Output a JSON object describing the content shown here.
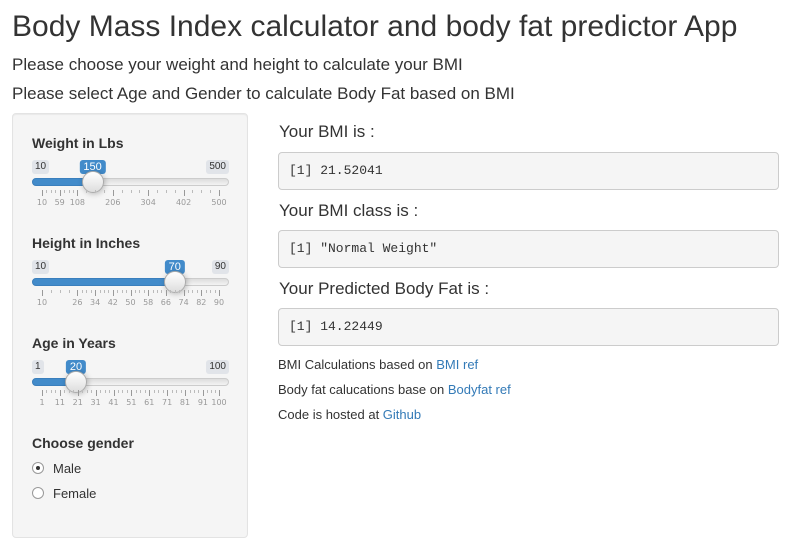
{
  "header": {
    "title": "Body Mass Index calculator and body fat predictor App",
    "subtitle1": "Please choose your weight and height to calculate your BMI",
    "subtitle2": "Please select Age and Gender to calculate Body Fat based on BMI"
  },
  "sidebar": {
    "weight": {
      "label": "Weight in Lbs",
      "min": "10",
      "max": "500",
      "value": "150",
      "fraction": 0.2857,
      "ticks": [
        "10",
        "59",
        "108",
        "206",
        "304",
        "402",
        "500"
      ],
      "tick_values": [
        10,
        59,
        108,
        206,
        304,
        402,
        500
      ],
      "range": [
        10,
        500
      ]
    },
    "height": {
      "label": "Height in Inches",
      "min": "10",
      "max": "90",
      "value": "70",
      "fraction": 0.75,
      "ticks": [
        "10",
        "26",
        "34",
        "42",
        "50",
        "58",
        "66",
        "74",
        "82",
        "90"
      ],
      "tick_values": [
        10,
        26,
        34,
        42,
        50,
        58,
        66,
        74,
        82,
        90
      ],
      "range": [
        10,
        90
      ]
    },
    "age": {
      "label": "Age in Years",
      "min": "1",
      "max": "100",
      "value": "20",
      "fraction": 0.1919,
      "ticks": [
        "1",
        "11",
        "21",
        "31",
        "41",
        "51",
        "61",
        "71",
        "81",
        "91",
        "100"
      ],
      "tick_values": [
        1,
        11,
        21,
        31,
        41,
        51,
        61,
        71,
        81,
        91,
        100
      ],
      "range": [
        1,
        100
      ]
    },
    "gender": {
      "label": "Choose gender",
      "options": [
        "Male",
        "Female"
      ],
      "selected": "Male"
    }
  },
  "main": {
    "bmi_heading": "Your BMI is :",
    "bmi_output": "[1] 21.52041",
    "class_heading": "Your BMI class is :",
    "class_output": "[1] \"Normal Weight\"",
    "fat_heading": "Your Predicted Body Fat is :",
    "fat_output": "[1] 14.22449",
    "notes": [
      {
        "text": "BMI Calculations based on ",
        "link": "BMI ref"
      },
      {
        "text": "Body fat calucations base on ",
        "link": "Bodyfat ref"
      },
      {
        "text": "Code is hosted at ",
        "link": "Github"
      }
    ]
  },
  "colors": {
    "accent": "#428bca",
    "link": "#337ab7"
  }
}
